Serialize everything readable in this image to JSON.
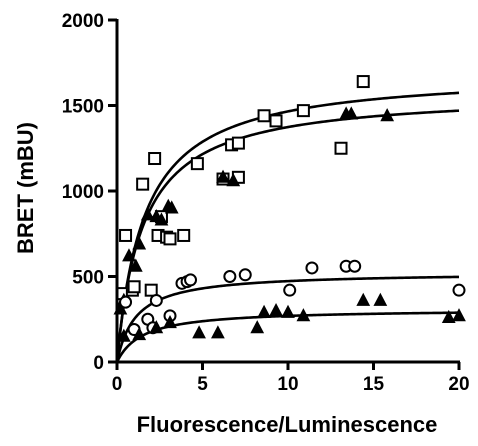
{
  "chart_data": {
    "type": "scatter",
    "title": "",
    "xlabel": "Fluorescence/Luminescence",
    "ylabel": "BRET (mBU)",
    "xlim": [
      0,
      20
    ],
    "ylim": [
      0,
      2000
    ],
    "x_ticks": [
      "0",
      "5",
      "10",
      "15",
      "20"
    ],
    "y_ticks": [
      "0",
      "500",
      "1000",
      "1500",
      "2000"
    ],
    "grid": false,
    "legend": "none",
    "series": [
      {
        "marker": "square",
        "points": [
          [
            0.3,
            400
          ],
          [
            0.5,
            740
          ],
          [
            0.9,
            420
          ],
          [
            1.0,
            440
          ],
          [
            1.5,
            1040
          ],
          [
            2.0,
            420
          ],
          [
            2.2,
            1190
          ],
          [
            2.4,
            740
          ],
          [
            2.6,
            850
          ],
          [
            2.9,
            730
          ],
          [
            3.1,
            720
          ],
          [
            3.9,
            740
          ],
          [
            4.7,
            1160
          ],
          [
            6.2,
            1070
          ],
          [
            6.7,
            1270
          ],
          [
            7.1,
            1080
          ],
          [
            7.1,
            1280
          ],
          [
            8.6,
            1440
          ],
          [
            9.3,
            1410
          ],
          [
            10.9,
            1470
          ],
          [
            13.1,
            1250
          ],
          [
            14.4,
            1640
          ]
        ],
        "fit": {
          "bmax": 1580,
          "kd": 1.5
        }
      },
      {
        "marker": "triangle",
        "points": [
          [
            0.2,
            310
          ],
          [
            0.4,
            360
          ],
          [
            0.7,
            620
          ],
          [
            1.1,
            560
          ],
          [
            1.3,
            690
          ],
          [
            1.8,
            860
          ],
          [
            2.3,
            850
          ],
          [
            2.6,
            830
          ],
          [
            3.0,
            910
          ],
          [
            3.2,
            900
          ],
          [
            6.2,
            1080
          ],
          [
            6.8,
            1060
          ],
          [
            13.4,
            1450
          ],
          [
            13.7,
            1450
          ],
          [
            15.8,
            1440
          ]
        ],
        "fit": {
          "bmax": 1700,
          "kd": 1.6
        }
      },
      {
        "marker": "circle",
        "points": [
          [
            0.5,
            350
          ],
          [
            1.0,
            190
          ],
          [
            1.8,
            250
          ],
          [
            2.1,
            200
          ],
          [
            2.3,
            360
          ],
          [
            3.1,
            270
          ],
          [
            3.8,
            460
          ],
          [
            4.1,
            470
          ],
          [
            4.3,
            480
          ],
          [
            6.6,
            500
          ],
          [
            7.5,
            510
          ],
          [
            10.1,
            420
          ],
          [
            11.4,
            550
          ],
          [
            13.4,
            560
          ],
          [
            13.9,
            560
          ],
          [
            20.0,
            420
          ]
        ],
        "fit": {
          "bmax": 525,
          "kd": 1.1
        }
      },
      {
        "marker": "triangle",
        "points": [
          [
            0.4,
            150
          ],
          [
            1.3,
            160
          ],
          [
            2.3,
            200
          ],
          [
            3.1,
            230
          ],
          [
            4.8,
            170
          ],
          [
            5.9,
            170
          ],
          [
            8.2,
            200
          ],
          [
            8.6,
            290
          ],
          [
            9.3,
            300
          ],
          [
            10.0,
            290
          ],
          [
            10.9,
            270
          ],
          [
            14.4,
            360
          ],
          [
            15.4,
            360
          ],
          [
            19.4,
            260
          ],
          [
            20.0,
            270
          ]
        ],
        "fit": {
          "bmax": 310,
          "kd": 1.5
        }
      }
    ]
  }
}
